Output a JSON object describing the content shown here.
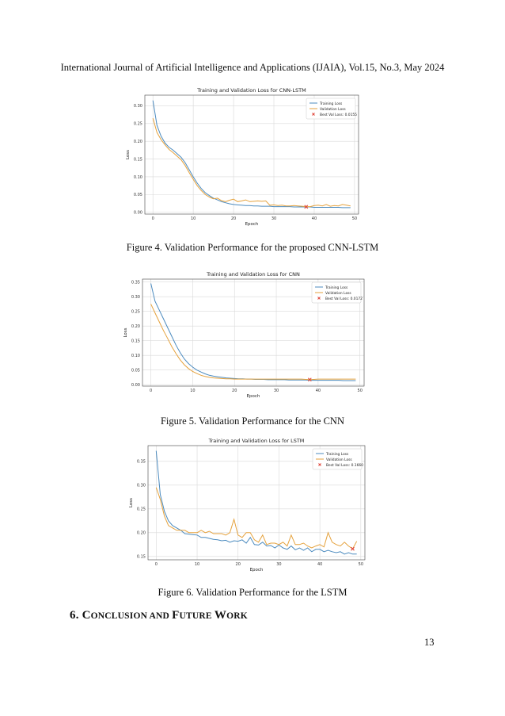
{
  "header": {
    "journal_line": "International Journal of Artificial Intelligence and Applications (IJAIA), Vol.15, No.3, May 2024"
  },
  "colors": {
    "training": "#4c8bbf",
    "validation": "#e5a23d",
    "best": "#e0453a",
    "grid": "#d9d9d9"
  },
  "chart_data": [
    {
      "type": "line",
      "title": "Training and Validation Loss for CNN-LSTM",
      "xlabel": "Epoch",
      "ylabel": "Loss",
      "xlim": [
        -2,
        51
      ],
      "ylim": [
        -0.005,
        0.33
      ],
      "xticks": [
        0,
        10,
        20,
        30,
        40,
        50
      ],
      "yticks": [
        0.0,
        0.05,
        0.1,
        0.15,
        0.2,
        0.25,
        0.3
      ],
      "ytick_labels": [
        "0.00",
        "0.05",
        "0.10",
        "0.15",
        "0.20",
        "0.25",
        "0.30"
      ],
      "legend_position": "upper-right",
      "series": [
        {
          "name": "Training Loss",
          "color": "training",
          "values": [
            0.315,
            0.245,
            0.215,
            0.195,
            0.183,
            0.175,
            0.165,
            0.155,
            0.14,
            0.12,
            0.1,
            0.082,
            0.067,
            0.055,
            0.047,
            0.04,
            0.035,
            0.03,
            0.027,
            0.024,
            0.022,
            0.021,
            0.02,
            0.019,
            0.019,
            0.018,
            0.018,
            0.017,
            0.017,
            0.017,
            0.016,
            0.016,
            0.016,
            0.016,
            0.016,
            0.015,
            0.015,
            0.015,
            0.015,
            0.015,
            0.014,
            0.014,
            0.014,
            0.014,
            0.014,
            0.014,
            0.014,
            0.013,
            0.013,
            0.013
          ]
        },
        {
          "name": "Validation Loss",
          "color": "validation",
          "values": [
            0.265,
            0.225,
            0.205,
            0.19,
            0.177,
            0.168,
            0.158,
            0.148,
            0.132,
            0.112,
            0.093,
            0.075,
            0.061,
            0.05,
            0.043,
            0.038,
            0.04,
            0.033,
            0.03,
            0.034,
            0.037,
            0.03,
            0.032,
            0.035,
            0.03,
            0.031,
            0.032,
            0.031,
            0.032,
            0.02,
            0.021,
            0.019,
            0.02,
            0.018,
            0.018,
            0.019,
            0.018,
            0.017,
            0.016,
            0.016,
            0.019,
            0.02,
            0.018,
            0.022,
            0.017,
            0.019,
            0.018,
            0.022,
            0.02,
            0.018
          ]
        }
      ],
      "best": {
        "label": "Best Val Loss: 0.0155",
        "epoch": 38,
        "value": 0.0155
      }
    },
    {
      "type": "line",
      "title": "Training and Validation Loss for CNN",
      "xlabel": "Epoch",
      "ylabel": "Loss",
      "xlim": [
        -2,
        51
      ],
      "ylim": [
        -0.005,
        0.36
      ],
      "xticks": [
        0,
        10,
        20,
        30,
        40,
        50
      ],
      "yticks": [
        0.0,
        0.05,
        0.1,
        0.15,
        0.2,
        0.25,
        0.3,
        0.35
      ],
      "ytick_labels": [
        "0.00",
        "0.05",
        "0.10",
        "0.15",
        "0.20",
        "0.25",
        "0.30",
        "0.35"
      ],
      "legend_position": "upper-right",
      "series": [
        {
          "name": "Training Loss",
          "color": "training",
          "values": [
            0.345,
            0.285,
            0.255,
            0.225,
            0.195,
            0.165,
            0.135,
            0.11,
            0.088,
            0.072,
            0.06,
            0.05,
            0.043,
            0.037,
            0.032,
            0.029,
            0.027,
            0.025,
            0.023,
            0.022,
            0.021,
            0.02,
            0.02,
            0.019,
            0.019,
            0.018,
            0.018,
            0.018,
            0.017,
            0.017,
            0.017,
            0.017,
            0.017,
            0.016,
            0.016,
            0.016,
            0.016,
            0.016,
            0.015,
            0.015,
            0.015,
            0.015,
            0.015,
            0.015,
            0.015,
            0.015,
            0.014,
            0.014,
            0.014,
            0.014
          ]
        },
        {
          "name": "Validation Loss",
          "color": "validation",
          "values": [
            0.275,
            0.245,
            0.215,
            0.185,
            0.158,
            0.13,
            0.106,
            0.085,
            0.068,
            0.055,
            0.045,
            0.038,
            0.032,
            0.028,
            0.025,
            0.023,
            0.022,
            0.021,
            0.02,
            0.02,
            0.019,
            0.019,
            0.019,
            0.019,
            0.019,
            0.019,
            0.019,
            0.019,
            0.019,
            0.019,
            0.019,
            0.019,
            0.019,
            0.019,
            0.019,
            0.019,
            0.019,
            0.018,
            0.0172,
            0.018,
            0.019,
            0.019,
            0.019,
            0.019,
            0.019,
            0.019,
            0.019,
            0.019,
            0.019,
            0.019
          ]
        }
      ],
      "best": {
        "label": "Best Val Loss: 0.0172",
        "epoch": 38,
        "value": 0.0172
      }
    },
    {
      "type": "line",
      "title": "Training and Validation Loss for LSTM",
      "xlabel": "Epoch",
      "ylabel": "Loss",
      "xlim": [
        -2,
        51
      ],
      "ylim": [
        0.143,
        0.383
      ],
      "xticks": [
        0,
        10,
        20,
        30,
        40,
        50
      ],
      "yticks": [
        0.15,
        0.2,
        0.25,
        0.3,
        0.35
      ],
      "ytick_labels": [
        "0.15",
        "0.20",
        "0.25",
        "0.30",
        "0.35"
      ],
      "legend_position": "upper-right",
      "series": [
        {
          "name": "Training Loss",
          "color": "training",
          "values": [
            0.372,
            0.28,
            0.245,
            0.225,
            0.215,
            0.21,
            0.205,
            0.198,
            0.197,
            0.196,
            0.195,
            0.19,
            0.19,
            0.188,
            0.186,
            0.185,
            0.183,
            0.184,
            0.18,
            0.183,
            0.182,
            0.185,
            0.178,
            0.19,
            0.175,
            0.174,
            0.18,
            0.172,
            0.173,
            0.168,
            0.174,
            0.168,
            0.165,
            0.172,
            0.164,
            0.168,
            0.163,
            0.168,
            0.16,
            0.165,
            0.165,
            0.16,
            0.163,
            0.16,
            0.158,
            0.16,
            0.155,
            0.158,
            0.155,
            0.155
          ]
        },
        {
          "name": "Validation Loss",
          "color": "validation",
          "values": [
            0.295,
            0.27,
            0.235,
            0.215,
            0.21,
            0.205,
            0.205,
            0.205,
            0.2,
            0.2,
            0.2,
            0.205,
            0.2,
            0.203,
            0.198,
            0.198,
            0.198,
            0.195,
            0.2,
            0.228,
            0.195,
            0.19,
            0.2,
            0.2,
            0.185,
            0.18,
            0.195,
            0.175,
            0.178,
            0.178,
            0.175,
            0.18,
            0.172,
            0.195,
            0.175,
            0.175,
            0.178,
            0.172,
            0.168,
            0.172,
            0.175,
            0.17,
            0.2,
            0.18,
            0.175,
            0.172,
            0.18,
            0.172,
            0.166,
            0.182
          ]
        }
      ],
      "best": {
        "label": "Best Val Loss: 0.1660",
        "epoch": 48,
        "value": 0.166
      }
    }
  ],
  "captions": [
    "Figure 4.  Validation Performance for the proposed CNN-LSTM",
    "Figure 5.  Validation Performance for the CNN",
    "Figure 6.  Validation Performance for the LSTM"
  ],
  "section": {
    "number": "6. ",
    "c1": "C",
    "w1": "ONCLUSION AND ",
    "f1": "F",
    "w2": "UTURE ",
    "w3": "W",
    "w4": "ORK"
  },
  "page_number": "13"
}
